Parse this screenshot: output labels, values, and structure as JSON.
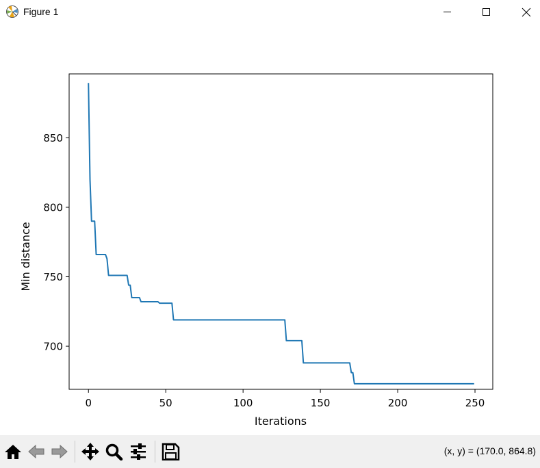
{
  "window": {
    "title": "Figure 1",
    "icons": [
      "matplotlib-logo-icon",
      "minimize-icon",
      "maximize-icon",
      "close-icon"
    ]
  },
  "toolbar": {
    "buttons": [
      "home-icon",
      "back-icon",
      "forward-icon",
      "pan-icon",
      "zoom-icon",
      "configure-subplots-icon",
      "save-icon"
    ],
    "coords": "(x, y) = (170.0, 864.8)"
  },
  "chart_data": {
    "type": "line",
    "title": "",
    "xlabel": "Iterations",
    "ylabel": "Min distance",
    "xlim": [
      -12.5,
      261.5
    ],
    "ylim": [
      669,
      896
    ],
    "xticks": [
      0,
      50,
      100,
      150,
      200,
      250
    ],
    "yticks": [
      700,
      750,
      800,
      850
    ],
    "grid": false,
    "color": "#1f77b4",
    "series": [
      {
        "x": [
          0,
          1,
          2,
          3,
          4,
          5,
          11,
          12,
          13,
          25,
          26,
          27,
          28,
          33,
          34,
          45,
          46,
          54,
          55,
          127,
          128,
          138,
          139,
          169,
          170,
          171,
          172,
          249
        ],
        "y": [
          889,
          820,
          790,
          790,
          790,
          766,
          766,
          763,
          751,
          751,
          744,
          744,
          735,
          735,
          732,
          732,
          731,
          731,
          719,
          719,
          704,
          704,
          688,
          688,
          681,
          681,
          673,
          673
        ]
      }
    ]
  }
}
